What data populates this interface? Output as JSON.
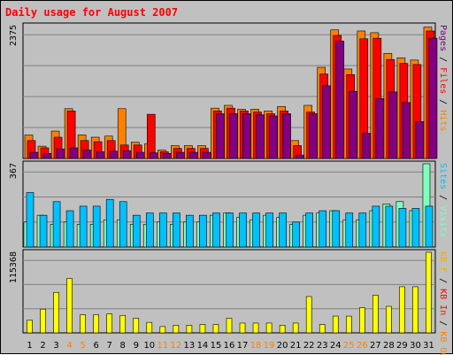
{
  "chart_data": {
    "type": "bar",
    "title": "Daily usage for August 2007",
    "categories": [
      "1",
      "2",
      "3",
      "4",
      "5",
      "6",
      "7",
      "8",
      "9",
      "10",
      "11",
      "12",
      "13",
      "14",
      "15",
      "16",
      "17",
      "18",
      "19",
      "20",
      "21",
      "22",
      "23",
      "24",
      "25",
      "26",
      "27",
      "28",
      "29",
      "30",
      "31"
    ],
    "weekend_days": [
      "4",
      "5",
      "11",
      "12",
      "18",
      "19",
      "25",
      "26"
    ],
    "panels": [
      {
        "name": "hits-files-pages",
        "ymax": 2375,
        "ymax_label": "2375",
        "legend": [
          {
            "text": "Pages",
            "color": "#800080"
          },
          {
            "text": " / ",
            "color": "#000000"
          },
          {
            "text": "Files",
            "color": "#ff0000"
          },
          {
            "text": " / ",
            "color": "#000000"
          },
          {
            "text": "Hits",
            "color": "#ff8000"
          }
        ],
        "series": [
          {
            "name": "Hits",
            "color": "#ff8000",
            "values": [
              420,
              220,
              490,
              890,
              420,
              380,
              400,
              890,
              290,
              260,
              150,
              230,
              230,
              230,
              900,
              950,
              880,
              880,
              850,
              930,
              320,
              950,
              1630,
              2300,
              1600,
              2280,
              2250,
              1880,
              1800,
              1760,
              2350
            ]
          },
          {
            "name": "Files",
            "color": "#ff0000",
            "values": [
              320,
              190,
              380,
              850,
              320,
              300,
              320,
              240,
              240,
              790,
              120,
              180,
              180,
              180,
              850,
              900,
              850,
              830,
              800,
              850,
              230,
              830,
              1510,
              2200,
              1500,
              2140,
              2150,
              1770,
              1700,
              1680,
              2280
            ]
          },
          {
            "name": "Pages",
            "color": "#800080",
            "values": [
              110,
              90,
              170,
              190,
              150,
              120,
              130,
              140,
              110,
              100,
              90,
              110,
              110,
              110,
              800,
              800,
              800,
              780,
              760,
              800,
              60,
              800,
              1300,
              2100,
              1200,
              450,
              1070,
              1190,
              1000,
              660,
              2150
            ]
          }
        ]
      },
      {
        "name": "visits-sites",
        "ymax": 367,
        "ymax_label": "367",
        "legend": [
          {
            "text": "Sites",
            "color": "#00c0ff"
          },
          {
            "text": " / ",
            "color": "#000000"
          },
          {
            "text": "Visits",
            "color": "#80ffc0"
          }
        ],
        "series": [
          {
            "name": "Visits",
            "color": "#80ffc0",
            "values": [
              110,
              140,
              100,
              110,
              100,
              100,
              120,
              120,
              100,
              100,
              110,
              100,
              110,
              110,
              140,
              150,
              130,
              120,
              140,
              130,
              100,
              140,
              150,
              160,
              120,
              120,
              160,
              190,
              200,
              160,
              367
            ]
          },
          {
            "name": "Sites",
            "color": "#00c0ff",
            "values": [
              240,
              140,
              200,
              160,
              180,
              180,
              210,
              200,
              140,
              150,
              150,
              150,
              140,
              140,
              150,
              150,
              150,
              150,
              150,
              150,
              110,
              150,
              160,
              160,
              150,
              150,
              180,
              180,
              170,
              170,
              180
            ]
          }
        ]
      },
      {
        "name": "kbytes",
        "ymax": 115368,
        "ymax_label": "115368",
        "legend": [
          {
            "text": "KB F",
            "color": "#ffa500"
          },
          {
            "text": " / ",
            "color": "#000000"
          },
          {
            "text": "KB In",
            "color": "#ff0000"
          },
          {
            "text": " / ",
            "color": "#000000"
          },
          {
            "text": "KB Out",
            "color": "#ff8000"
          }
        ],
        "series": [
          {
            "name": "KBytes",
            "color": "#ffff00",
            "values": [
              18000,
              34000,
              58000,
              78000,
              26000,
              26000,
              27000,
              25000,
              21000,
              15000,
              9000,
              11000,
              11000,
              12000,
              12000,
              21000,
              14000,
              14000,
              14000,
              11000,
              14000,
              52000,
              12000,
              24000,
              24000,
              36000,
              54000,
              38000,
              66000,
              66000,
              115368
            ]
          }
        ]
      }
    ]
  }
}
